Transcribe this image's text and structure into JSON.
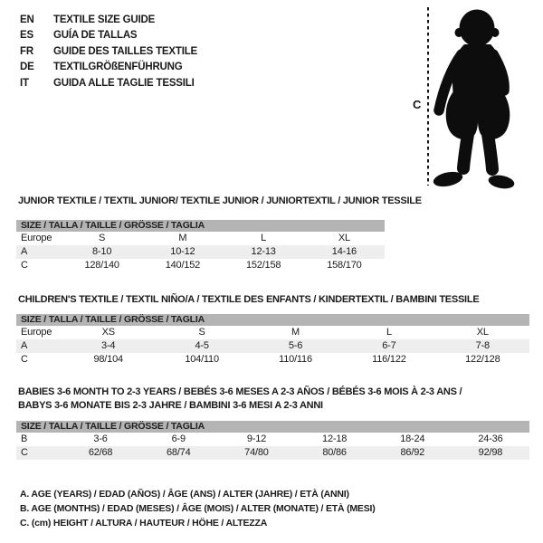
{
  "header": {
    "languages": [
      {
        "code": "EN",
        "label": "TEXTILE SIZE GUIDE"
      },
      {
        "code": "ES",
        "label": "GUÍA DE TALLAS"
      },
      {
        "code": "FR",
        "label": "GUIDE DES TAILLES TEXTILE"
      },
      {
        "code": "DE",
        "label": "TEXTILGRÖßENFÜHRUNG"
      },
      {
        "code": "IT",
        "label": "GUIDA ALLE TAGLIE TESSILI"
      }
    ]
  },
  "figure": {
    "height_label": "C",
    "silhouette": "baby-toddler-standing"
  },
  "tables": [
    {
      "title": "JUNIOR TEXTILE / TEXTIL JUNIOR/ TEXTILE JUNIOR / JUNIORTEXTIL / JUNIOR TESSILE",
      "size_header": "SIZE / TALLA / TAILLE / GRÖSSE / TAGLIA",
      "rows": [
        {
          "label": "Europe",
          "values": [
            "S",
            "M",
            "L",
            "XL"
          ]
        },
        {
          "label": "A",
          "values": [
            "8-10",
            "10-12",
            "12-13",
            "14-16"
          ]
        },
        {
          "label": "C",
          "values": [
            "128/140",
            "140/152",
            "152/158",
            "158/170"
          ]
        }
      ]
    },
    {
      "title": "CHILDREN'S TEXTILE / TEXTIL NIÑO/A / TEXTILE DES ENFANTS / KINDERTEXTIL / BAMBINI TESSILE",
      "size_header": "SIZE / TALLA / TAILLE / GRÖSSE / TAGLIA",
      "rows": [
        {
          "label": "Europe",
          "values": [
            "XS",
            "S",
            "M",
            "L",
            "XL"
          ]
        },
        {
          "label": "A",
          "values": [
            "3-4",
            "4-5",
            "5-6",
            "6-7",
            "7-8"
          ]
        },
        {
          "label": "C",
          "values": [
            "98/104",
            "104/110",
            "110/116",
            "116/122",
            "122/128"
          ]
        }
      ]
    },
    {
      "title": "BABIES 3-6 MONTH TO 2-3 YEARS / BEBÉS 3-6 MESES A 2-3 AÑOS / BÉBÉS 3-6 MOIS À 2-3 ANS /",
      "title2": "BABYS 3-6 MONATE BIS 2-3 JAHRE / BAMBINI 3-6 MESI A 2-3 ANNI",
      "size_header": "SIZE / TALLA / TAILLE / GRÖSSE / TAGLIA",
      "rows": [
        {
          "label": "B",
          "values": [
            "3-6",
            "6-9",
            "9-12",
            "12-18",
            "18-24",
            "24-36"
          ]
        },
        {
          "label": "C",
          "values": [
            "62/68",
            "68/74",
            "74/80",
            "80/86",
            "86/92",
            "92/98"
          ]
        }
      ]
    }
  ],
  "footnotes": [
    "A. AGE (YEARS) / EDAD (AÑOS) / ÂGE (ANS) / ALTER (JAHRE) / ETÀ (ANNI)",
    "B. AGE (MONTHS) / EDAD (MESES) / ÂGE (MOIS) / ALTER (MONATE) / ETÀ (MESI)",
    "C. (cm) HEIGHT / ALTURA / HAUTEUR / HÖHE / ALTEZZA"
  ],
  "colors": {
    "size_bar_gray": "#b4b4b4",
    "row_alt_gray": "#eeeeee",
    "text": "#1a1a1a",
    "silhouette_black": "#0d0d0d"
  }
}
